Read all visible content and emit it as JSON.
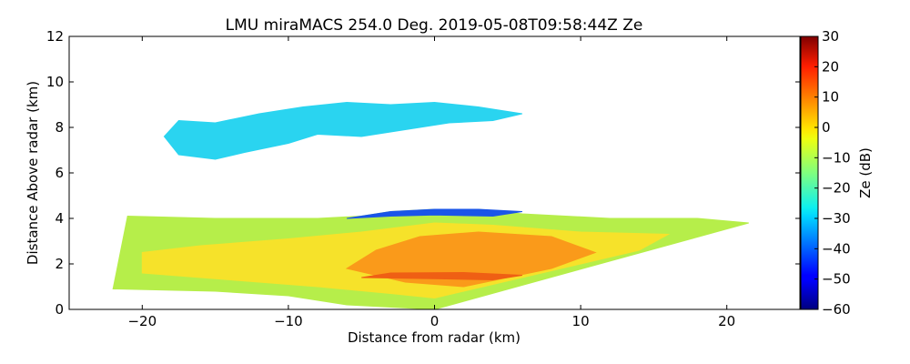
{
  "chart_data": {
    "type": "heatmap",
    "title": "LMU miraMACS 254.0 Deg. 2019-05-08T09:58:44Z  Ze",
    "xlabel": "Distance from radar (km)",
    "ylabel": "Distance Above radar  (km)",
    "xlim": [
      -25,
      25
    ],
    "ylim": [
      0,
      12
    ],
    "xticks": [
      -20,
      -10,
      0,
      10,
      20
    ],
    "xtick_labels": [
      "−20",
      "−10",
      "0",
      "10",
      "20"
    ],
    "yticks": [
      0,
      2,
      4,
      6,
      8,
      10,
      12
    ],
    "ytick_labels": [
      "0",
      "2",
      "4",
      "6",
      "8",
      "10",
      "12"
    ],
    "colorbar": {
      "label": "Ze (dB)",
      "range": [
        -60,
        30
      ],
      "colormap": "jet",
      "ticks": [
        30,
        20,
        10,
        0,
        -10,
        -20,
        -30,
        -40,
        -50,
        -60
      ],
      "tick_labels": [
        "30",
        "20",
        "10",
        "0",
        "−10",
        "−20",
        "−30",
        "−40",
        "−50",
        "−60"
      ]
    },
    "regions": [
      {
        "name": "upper cloud layer",
        "approx_Ze_dB": -25,
        "color": "#2ad4f0",
        "outline_km": [
          [
            -18.5,
            7.6
          ],
          [
            -17.5,
            6.8
          ],
          [
            -15,
            6.6
          ],
          [
            -13,
            6.9
          ],
          [
            -10,
            7.3
          ],
          [
            -8,
            7.7
          ],
          [
            -5,
            7.6
          ],
          [
            -2,
            7.9
          ],
          [
            1,
            8.2
          ],
          [
            4,
            8.3
          ],
          [
            6,
            8.6
          ],
          [
            3,
            8.9
          ],
          [
            0,
            9.1
          ],
          [
            -3,
            9.0
          ],
          [
            -6,
            9.1
          ],
          [
            -9,
            8.9
          ],
          [
            -12,
            8.6
          ],
          [
            -15,
            8.2
          ],
          [
            -17.5,
            8.3
          ]
        ]
      },
      {
        "name": "lower precipitation layer",
        "approx_Ze_dB": -12,
        "color": "#b6ee4a",
        "outline_km": [
          [
            -22,
            0.9
          ],
          [
            -15,
            0.8
          ],
          [
            -10,
            0.6
          ],
          [
            -6,
            0.2
          ],
          [
            0,
            0.0
          ],
          [
            21.5,
            3.8
          ],
          [
            18,
            4.0
          ],
          [
            12,
            4.0
          ],
          [
            6,
            4.2
          ],
          [
            3,
            4.4
          ],
          [
            0,
            4.4
          ],
          [
            -3,
            4.3
          ],
          [
            -5,
            4.1
          ],
          [
            -8,
            4.0
          ],
          [
            -15,
            4.0
          ],
          [
            -21,
            4.1
          ]
        ]
      },
      {
        "name": "cloud top edge",
        "approx_Ze_dB": -42,
        "color": "#1a55e8",
        "outline_km": [
          [
            -6,
            4.0
          ],
          [
            -3,
            4.3
          ],
          [
            0,
            4.4
          ],
          [
            3,
            4.4
          ],
          [
            6,
            4.3
          ],
          [
            4,
            4.1
          ],
          [
            0,
            4.15
          ],
          [
            -3,
            4.1
          ]
        ]
      },
      {
        "name": "yellow reflectivity zone",
        "approx_Ze_dB": -4,
        "color": "#f6e22a",
        "outline_km": [
          [
            -20,
            1.6
          ],
          [
            -14,
            1.3
          ],
          [
            -8,
            1.0
          ],
          [
            -3,
            0.7
          ],
          [
            0,
            0.5
          ],
          [
            14,
            2.6
          ],
          [
            16,
            3.3
          ],
          [
            10,
            3.4
          ],
          [
            4,
            3.7
          ],
          [
            0,
            3.8
          ],
          [
            -5,
            3.4
          ],
          [
            -10,
            3.1
          ],
          [
            -16,
            2.8
          ],
          [
            -20,
            2.5
          ]
        ]
      },
      {
        "name": "orange core",
        "approx_Ze_dB": 10,
        "color": "#fa9a1a",
        "outline_km": [
          [
            -6,
            1.8
          ],
          [
            -2,
            1.2
          ],
          [
            2,
            1.0
          ],
          [
            8,
            1.8
          ],
          [
            11,
            2.5
          ],
          [
            8,
            3.2
          ],
          [
            3,
            3.4
          ],
          [
            -1,
            3.2
          ],
          [
            -4,
            2.6
          ]
        ]
      },
      {
        "name": "red-orange band",
        "approx_Ze_dB": 16,
        "color": "#ef5f14",
        "outline_km": [
          [
            -5,
            1.4
          ],
          [
            0,
            1.35
          ],
          [
            4,
            1.3
          ],
          [
            6,
            1.5
          ],
          [
            2,
            1.62
          ],
          [
            -3,
            1.6
          ]
        ]
      }
    ]
  }
}
